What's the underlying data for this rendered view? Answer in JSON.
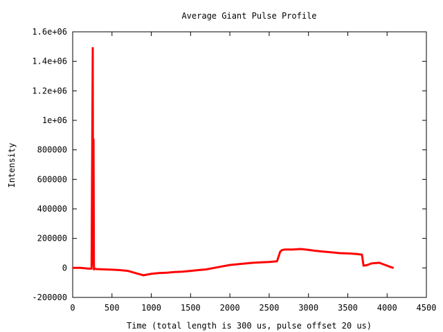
{
  "chart_data": {
    "type": "line",
    "title": "Average Giant Pulse Profile",
    "xlabel": "Time (total length is 300 us, pulse offset 20 us)",
    "ylabel": "Intensity",
    "xlim": [
      0,
      4500
    ],
    "ylim": [
      -200000,
      1600000
    ],
    "x_ticks": [
      0,
      500,
      1000,
      1500,
      2000,
      2500,
      3000,
      3500,
      4000,
      4500
    ],
    "x_tick_labels": [
      "0",
      "500",
      "1000",
      "1500",
      "2000",
      "2500",
      "3000",
      "3500",
      "4000",
      "4500"
    ],
    "y_ticks": [
      -200000,
      0,
      200000,
      400000,
      600000,
      800000,
      1000000,
      1200000,
      1400000,
      1600000
    ],
    "y_tick_labels": [
      "-200000",
      "0",
      "200000",
      "400000",
      "600000",
      "800000",
      "1e+06",
      "1.2e+06",
      "1.4e+06",
      "1.6e+06"
    ],
    "grid": false,
    "legend": "none",
    "series": [
      {
        "color": "#ff0000",
        "x": [
          0,
          100,
          200,
          240,
          255,
          260,
          265,
          270,
          285,
          300,
          400,
          500,
          600,
          700,
          800,
          900,
          1000,
          1100,
          1200,
          1300,
          1400,
          1500,
          1600,
          1700,
          1800,
          1900,
          2000,
          2100,
          2200,
          2300,
          2400,
          2500,
          2600,
          2640,
          2660,
          2700,
          2800,
          2900,
          3000,
          3100,
          3200,
          3300,
          3400,
          3500,
          3600,
          3680,
          3700,
          3750,
          3800,
          3900,
          3950,
          4000,
          4050,
          4080
        ],
        "y": [
          0,
          0,
          -5000,
          -5000,
          1490000,
          20000,
          870000,
          -10000,
          -5000,
          -8000,
          -10000,
          -12000,
          -15000,
          -20000,
          -35000,
          -50000,
          -40000,
          -35000,
          -32000,
          -28000,
          -25000,
          -20000,
          -15000,
          -10000,
          0,
          10000,
          20000,
          25000,
          30000,
          35000,
          38000,
          40000,
          45000,
          110000,
          120000,
          125000,
          125000,
          128000,
          122000,
          115000,
          110000,
          105000,
          100000,
          98000,
          95000,
          90000,
          15000,
          20000,
          30000,
          35000,
          25000,
          15000,
          5000,
          0
        ]
      }
    ]
  }
}
